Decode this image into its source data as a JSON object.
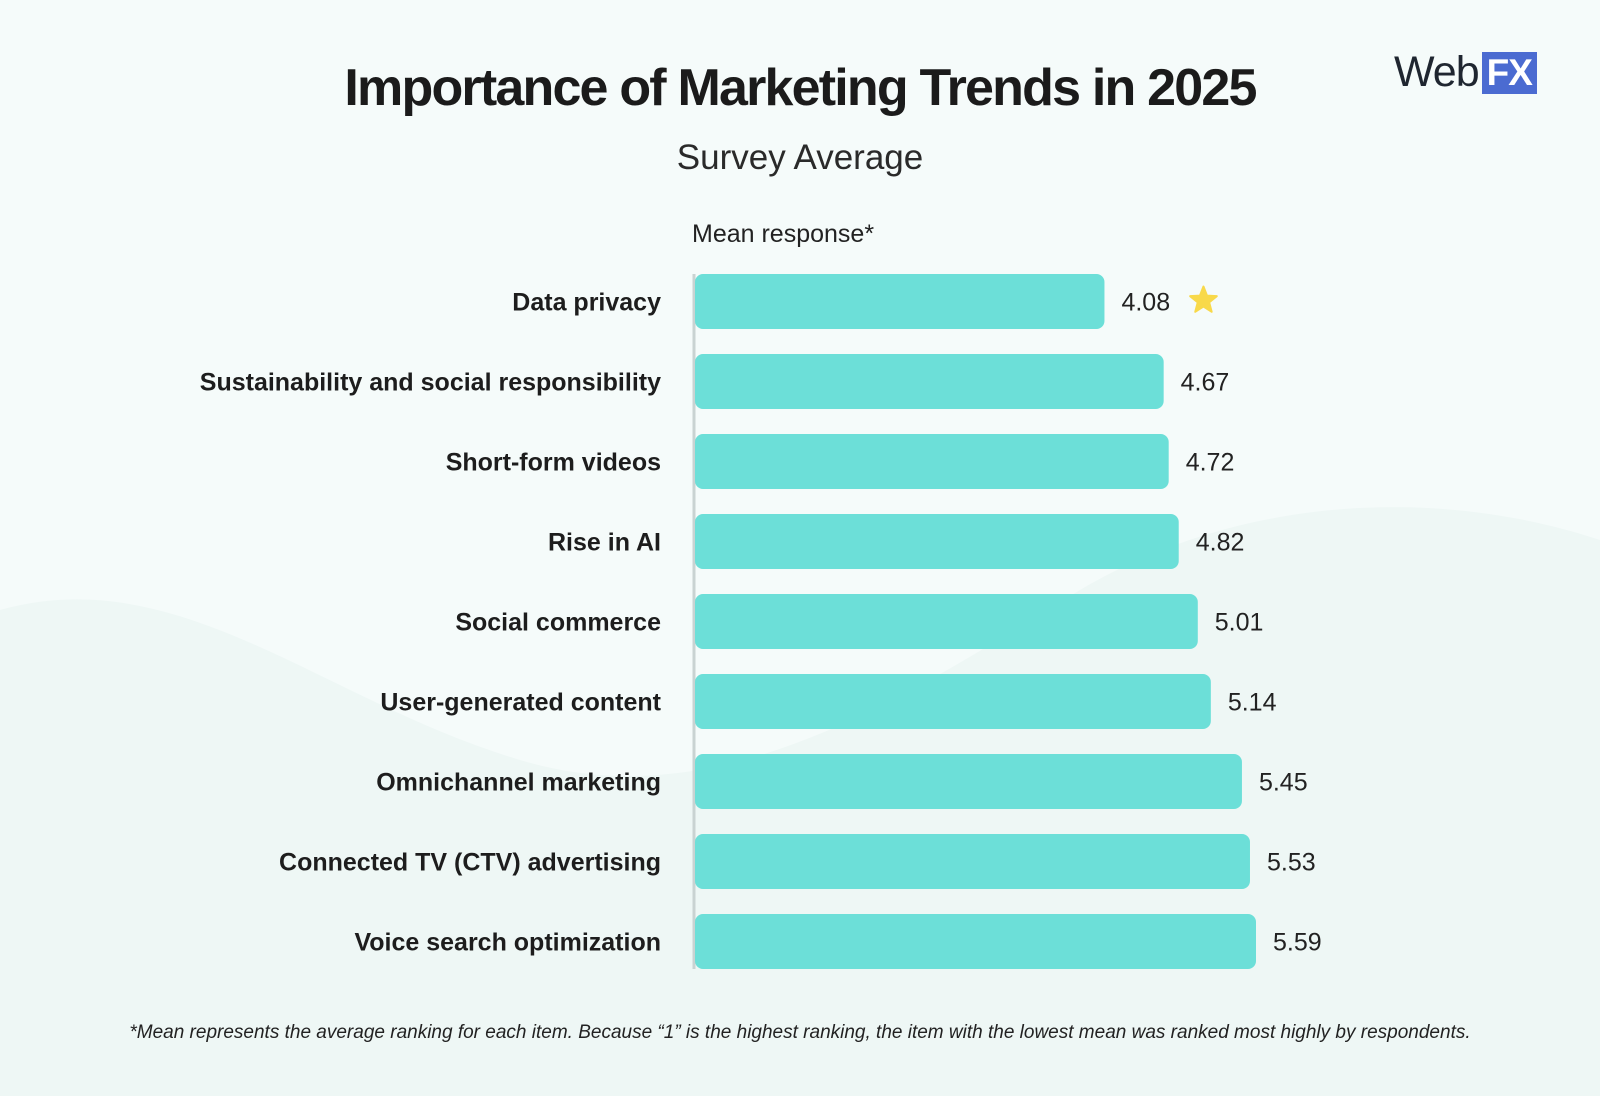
{
  "title": "Importance of Marketing Trends in 2025",
  "subtitle": "Survey Average",
  "logo": {
    "text_main": "Web",
    "text_box": "FX"
  },
  "footnote": "*Mean represents the average ranking for each item. Because “1” is the highest ranking, the item with the lowest mean was ranked most highly by respondents.",
  "colors": {
    "bar": "#6cdfd8",
    "axis": "#c9d3d2",
    "star": "#f8d94a",
    "logo_box": "#4b6bd1"
  },
  "chart_data": {
    "type": "bar",
    "orientation": "horizontal",
    "title": "Importance of Marketing Trends in 2025",
    "subtitle": "Survey Average",
    "xlabel": "Mean response*",
    "ylabel": "",
    "xlim": [
      0,
      5.59
    ],
    "grid": false,
    "categories": [
      "Data privacy",
      "Sustainability and social responsibility",
      "Short-form videos",
      "Rise in AI",
      "Social commerce",
      "User-generated content",
      "Omnichannel marketing",
      "Connected TV (CTV) advertising",
      "Voice search optimization"
    ],
    "values": [
      4.08,
      4.67,
      4.72,
      4.82,
      5.01,
      5.14,
      5.45,
      5.53,
      5.59
    ],
    "value_labels": [
      "4.08",
      "4.67",
      "4.72",
      "4.82",
      "5.01",
      "5.14",
      "5.45",
      "5.53",
      "5.59"
    ],
    "highlight_index": 0,
    "highlight_icon": "star-icon"
  }
}
